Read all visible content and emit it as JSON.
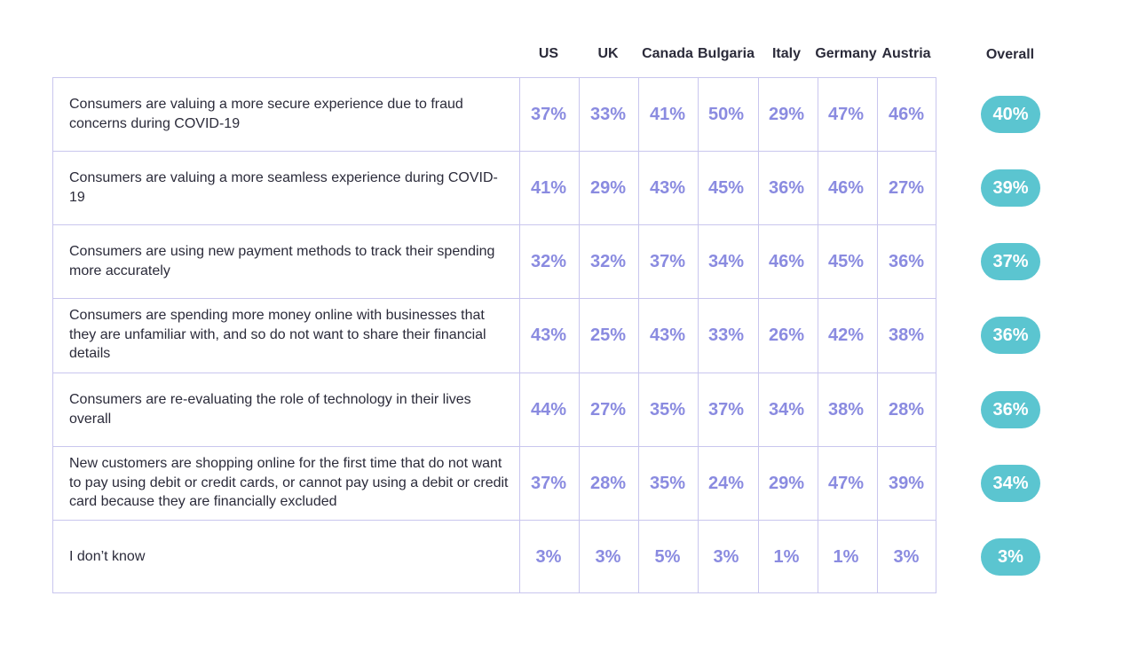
{
  "chart_data": {
    "type": "table",
    "columns": [
      "US",
      "UK",
      "Canada",
      "Bulgaria",
      "Italy",
      "Germany",
      "Austria"
    ],
    "overall_label": "Overall",
    "rows": [
      {
        "label": "Consumers are valuing a more secure experience due to fraud concerns during COVID-19",
        "values": [
          "37%",
          "33%",
          "41%",
          "50%",
          "29%",
          "47%",
          "46%"
        ],
        "overall": "40%"
      },
      {
        "label": "Consumers are valuing a more seamless experience during COVID-19",
        "values": [
          "41%",
          "29%",
          "43%",
          "45%",
          "36%",
          "46%",
          "27%"
        ],
        "overall": "39%"
      },
      {
        "label": "Consumers are using new payment methods to track their spending more accurately",
        "values": [
          "32%",
          "32%",
          "37%",
          "34%",
          "46%",
          "45%",
          "36%"
        ],
        "overall": "37%"
      },
      {
        "label": "Consumers are spending more money online with businesses that they are unfamiliar with, and so do not want to share their financial details",
        "values": [
          "43%",
          "25%",
          "43%",
          "33%",
          "26%",
          "42%",
          "38%"
        ],
        "overall": "36%"
      },
      {
        "label": "Consumers are re-evaluating the role of technology in their lives overall",
        "values": [
          "44%",
          "27%",
          "35%",
          "37%",
          "34%",
          "38%",
          "28%"
        ],
        "overall": "36%"
      },
      {
        "label": "New customers are shopping online for the first time that do not want to pay using debit or credit cards, or cannot pay using a debit or credit card because they are financially excluded",
        "values": [
          "37%",
          "28%",
          "35%",
          "24%",
          "29%",
          "47%",
          "39%"
        ],
        "overall": "34%"
      },
      {
        "label": "I don’t know",
        "values": [
          "3%",
          "3%",
          "5%",
          "3%",
          "1%",
          "1%",
          "3%"
        ],
        "overall": "3%"
      }
    ]
  },
  "colors": {
    "header_text": "#2b2b3a",
    "label_text": "#2b2b3a",
    "value_text": "#8a8be0",
    "grid_line": "#c9c6ee",
    "overall_pill": "#5bc5d0",
    "overall_text": "#ffffff"
  }
}
